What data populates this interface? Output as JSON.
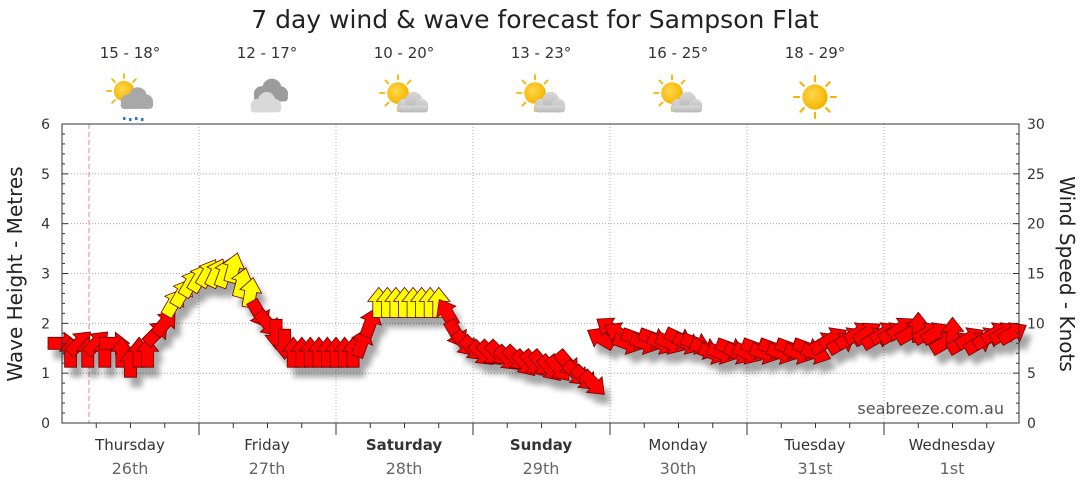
{
  "chart_data": {
    "type": "line",
    "title": "7 day wind & wave forecast for Sampson Flat",
    "ylabel_left": "Wave Height - Metres",
    "ylabel_right": "Wind Speed - Knots",
    "ylim_left": [
      0,
      6
    ],
    "ylim_right": [
      0,
      30
    ],
    "yticks_left": [
      "0",
      "1",
      "2",
      "3",
      "4",
      "5",
      "6"
    ],
    "yticks_right": [
      "0",
      "5",
      "10",
      "15",
      "20",
      "25",
      "30"
    ],
    "watermark": "seabreeze.com.au",
    "days": [
      {
        "day": "Thursday",
        "date": "26th",
        "bold": false,
        "temp": "15 - 18°",
        "weather": "rain-cloud-icon"
      },
      {
        "day": "Friday",
        "date": "27th",
        "bold": false,
        "temp": "12 - 17°",
        "weather": "cloudy-icon"
      },
      {
        "day": "Saturday",
        "date": "28th",
        "bold": true,
        "temp": "10 - 20°",
        "weather": "partly-cloudy-icon"
      },
      {
        "day": "Sunday",
        "date": "29th",
        "bold": true,
        "temp": "13 - 23°",
        "weather": "partly-cloudy-icon"
      },
      {
        "day": "Monday",
        "date": "30th",
        "bold": false,
        "temp": "16 - 25°",
        "weather": "partly-cloudy-icon"
      },
      {
        "day": "Tuesday",
        "date": "31st",
        "bold": false,
        "temp": "18 - 29°",
        "weather": "sunny-icon"
      },
      {
        "day": "Wednesday",
        "date": "1st",
        "bold": false,
        "temp": "",
        "weather": ""
      }
    ],
    "x_range_hours": [
      0,
      168
    ],
    "now_marker_hour": 6,
    "series": [
      {
        "name": "Wind Speed (knots)",
        "note": "hour offset from start of Thursday; direction in degrees the arrow points",
        "points": [
          {
            "h": 0,
            "kn": 8,
            "dir": 90
          },
          {
            "h": 1.5,
            "kn": 7,
            "dir": 0
          },
          {
            "h": 3,
            "kn": 8,
            "dir": 45
          },
          {
            "h": 4.5,
            "kn": 7,
            "dir": 0
          },
          {
            "h": 6,
            "kn": 8,
            "dir": 45
          },
          {
            "h": 7.5,
            "kn": 7,
            "dir": 0
          },
          {
            "h": 9,
            "kn": 8,
            "dir": 90
          },
          {
            "h": 10.5,
            "kn": 7,
            "dir": 0
          },
          {
            "h": 12,
            "kn": 6,
            "dir": 0
          },
          {
            "h": 13.5,
            "kn": 7,
            "dir": 0
          },
          {
            "h": 15,
            "kn": 7,
            "dir": 0
          },
          {
            "h": 16.5,
            "kn": 9,
            "dir": 45
          },
          {
            "h": 18,
            "kn": 10,
            "dir": 40
          },
          {
            "h": 19.5,
            "kn": 12,
            "dir": 30
          },
          {
            "h": 21,
            "kn": 13,
            "dir": 30
          },
          {
            "h": 22.5,
            "kn": 14,
            "dir": 30
          },
          {
            "h": 24,
            "kn": 14.5,
            "dir": 30
          },
          {
            "h": 25.5,
            "kn": 15,
            "dir": 30
          },
          {
            "h": 27,
            "kn": 15,
            "dir": 25
          },
          {
            "h": 28.5,
            "kn": 15,
            "dir": 20
          },
          {
            "h": 30,
            "kn": 15.5,
            "dir": 15
          },
          {
            "h": 31.5,
            "kn": 14,
            "dir": 15
          },
          {
            "h": 33,
            "kn": 13,
            "dir": 10
          },
          {
            "h": 34.5,
            "kn": 11,
            "dir": 150
          },
          {
            "h": 36,
            "kn": 10,
            "dir": 140
          },
          {
            "h": 37.5,
            "kn": 9,
            "dir": 180
          },
          {
            "h": 39,
            "kn": 8,
            "dir": 180
          },
          {
            "h": 40.5,
            "kn": 7,
            "dir": 0
          },
          {
            "h": 42,
            "kn": 7,
            "dir": 0
          },
          {
            "h": 43.5,
            "kn": 7,
            "dir": 0
          },
          {
            "h": 45,
            "kn": 7,
            "dir": 0
          },
          {
            "h": 46.5,
            "kn": 7,
            "dir": 0
          },
          {
            "h": 48,
            "kn": 7,
            "dir": 0
          },
          {
            "h": 49.5,
            "kn": 7,
            "dir": 0
          },
          {
            "h": 51,
            "kn": 7,
            "dir": 0
          },
          {
            "h": 52.5,
            "kn": 8,
            "dir": 20
          },
          {
            "h": 54,
            "kn": 10,
            "dir": 20
          },
          {
            "h": 55.5,
            "kn": 12,
            "dir": 0
          },
          {
            "h": 57,
            "kn": 12,
            "dir": 0
          },
          {
            "h": 58.5,
            "kn": 12,
            "dir": 0
          },
          {
            "h": 60,
            "kn": 12,
            "dir": 0
          },
          {
            "h": 61.5,
            "kn": 12,
            "dir": 0
          },
          {
            "h": 63,
            "kn": 12,
            "dir": 0
          },
          {
            "h": 64.5,
            "kn": 12,
            "dir": 0
          },
          {
            "h": 66,
            "kn": 12,
            "dir": 0
          },
          {
            "h": 67.5,
            "kn": 11,
            "dir": 330
          },
          {
            "h": 69,
            "kn": 9,
            "dir": 150
          },
          {
            "h": 70.5,
            "kn": 8,
            "dir": 140
          },
          {
            "h": 72,
            "kn": 7.5,
            "dir": 135
          },
          {
            "h": 73.5,
            "kn": 7,
            "dir": 135
          },
          {
            "h": 75,
            "kn": 7,
            "dir": 135
          },
          {
            "h": 76.5,
            "kn": 7,
            "dir": 135
          },
          {
            "h": 78,
            "kn": 6.5,
            "dir": 135
          },
          {
            "h": 79.5,
            "kn": 6.5,
            "dir": 135
          },
          {
            "h": 81,
            "kn": 6,
            "dir": 140
          },
          {
            "h": 82.5,
            "kn": 6,
            "dir": 140
          },
          {
            "h": 84,
            "kn": 6,
            "dir": 140
          },
          {
            "h": 85.5,
            "kn": 5.5,
            "dir": 140
          },
          {
            "h": 87,
            "kn": 5.5,
            "dir": 140
          },
          {
            "h": 88.5,
            "kn": 6,
            "dir": 140
          },
          {
            "h": 90,
            "kn": 5,
            "dir": 135
          },
          {
            "h": 91.5,
            "kn": 4.5,
            "dir": 135
          },
          {
            "h": 93,
            "kn": 4,
            "dir": 135
          },
          {
            "h": 94.5,
            "kn": 8.5,
            "dir": 300
          },
          {
            "h": 96,
            "kn": 9.5,
            "dir": 305
          },
          {
            "h": 97.5,
            "kn": 9,
            "dir": 300
          },
          {
            "h": 99,
            "kn": 8,
            "dir": 110
          },
          {
            "h": 100.5,
            "kn": 8.5,
            "dir": 110
          },
          {
            "h": 102,
            "kn": 8,
            "dir": 110
          },
          {
            "h": 103.5,
            "kn": 8.5,
            "dir": 110
          },
          {
            "h": 105,
            "kn": 8,
            "dir": 115
          },
          {
            "h": 106.5,
            "kn": 8,
            "dir": 115
          },
          {
            "h": 108,
            "kn": 8.5,
            "dir": 115
          },
          {
            "h": 109.5,
            "kn": 8,
            "dir": 115
          },
          {
            "h": 111,
            "kn": 8,
            "dir": 110
          },
          {
            "h": 112.5,
            "kn": 7.5,
            "dir": 110
          },
          {
            "h": 114,
            "kn": 7,
            "dir": 110
          },
          {
            "h": 115.5,
            "kn": 7,
            "dir": 110
          },
          {
            "h": 117,
            "kn": 7.5,
            "dir": 110
          },
          {
            "h": 118.5,
            "kn": 7,
            "dir": 115
          },
          {
            "h": 120,
            "kn": 7,
            "dir": 115
          },
          {
            "h": 121.5,
            "kn": 7.5,
            "dir": 110
          },
          {
            "h": 123,
            "kn": 7,
            "dir": 110
          },
          {
            "h": 124.5,
            "kn": 7.5,
            "dir": 110
          },
          {
            "h": 126,
            "kn": 7,
            "dir": 110
          },
          {
            "h": 127.5,
            "kn": 7.5,
            "dir": 110
          },
          {
            "h": 129,
            "kn": 7,
            "dir": 110
          },
          {
            "h": 130.5,
            "kn": 7.5,
            "dir": 110
          },
          {
            "h": 132,
            "kn": 7,
            "dir": 110
          },
          {
            "h": 133.5,
            "kn": 8,
            "dir": 60
          },
          {
            "h": 135,
            "kn": 8.5,
            "dir": 60
          },
          {
            "h": 136.5,
            "kn": 8,
            "dir": 60
          },
          {
            "h": 138,
            "kn": 8.5,
            "dir": 60
          },
          {
            "h": 139.5,
            "kn": 9,
            "dir": 60
          },
          {
            "h": 141,
            "kn": 9,
            "dir": 55
          },
          {
            "h": 142.5,
            "kn": 8.5,
            "dir": 60
          },
          {
            "h": 144,
            "kn": 9,
            "dir": 60
          },
          {
            "h": 145.5,
            "kn": 9,
            "dir": 60
          },
          {
            "h": 147,
            "kn": 9.5,
            "dir": 55
          },
          {
            "h": 148.5,
            "kn": 9,
            "dir": 60
          },
          {
            "h": 150,
            "kn": 9.5,
            "dir": 0
          },
          {
            "h": 151.5,
            "kn": 9,
            "dir": 60
          },
          {
            "h": 153,
            "kn": 9,
            "dir": 60
          },
          {
            "h": 154.5,
            "kn": 8,
            "dir": 60
          },
          {
            "h": 156,
            "kn": 9,
            "dir": 0
          },
          {
            "h": 157.5,
            "kn": 8,
            "dir": 60
          },
          {
            "h": 159,
            "kn": 8.5,
            "dir": 60
          },
          {
            "h": 160.5,
            "kn": 8,
            "dir": 60
          },
          {
            "h": 162,
            "kn": 8.5,
            "dir": 60
          },
          {
            "h": 163.5,
            "kn": 9,
            "dir": 60
          },
          {
            "h": 165,
            "kn": 9,
            "dir": 60
          },
          {
            "h": 166.5,
            "kn": 9,
            "dir": 60
          }
        ]
      }
    ],
    "legend": "none",
    "grid": true
  }
}
